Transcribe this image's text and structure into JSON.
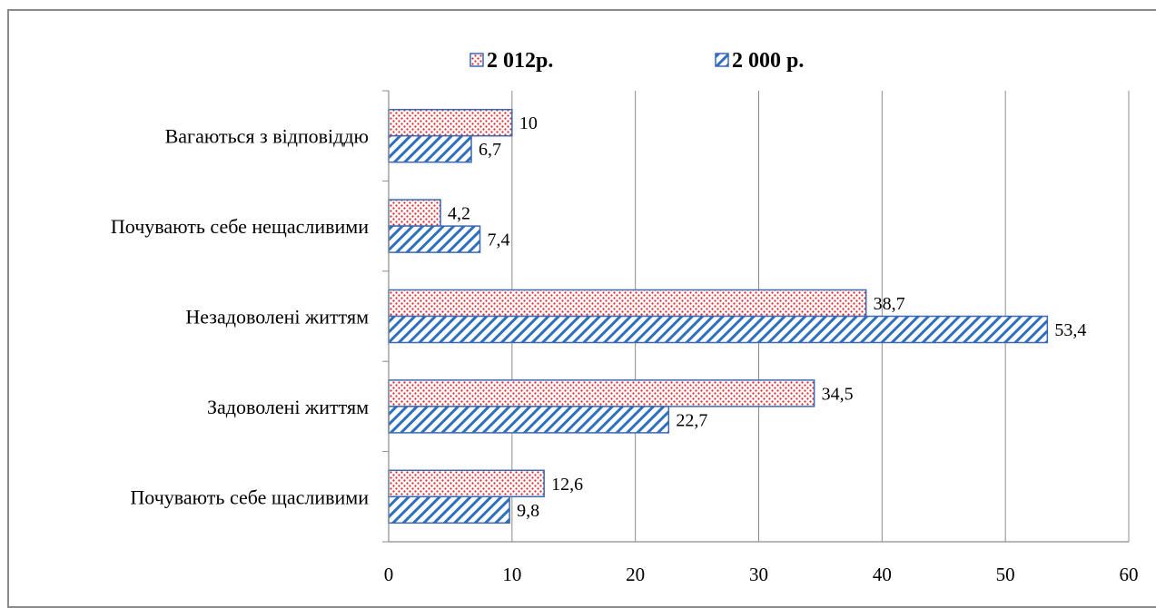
{
  "chart_data": {
    "type": "bar",
    "orientation": "horizontal",
    "categories": [
      "Почувають себе щасливими",
      "Задоволені життям",
      "Незадоволені життям",
      "Почувають себе нещасливими",
      "Вагаються з відповіддю"
    ],
    "series": [
      {
        "name": "2 012р.",
        "values": [
          12.6,
          34.5,
          38.7,
          4.2,
          10
        ],
        "labels": [
          "12,6",
          "34,5",
          "38,7",
          "4,2",
          "10"
        ]
      },
      {
        "name": "2 000 р.",
        "values": [
          9.8,
          22.7,
          53.4,
          7.4,
          6.7
        ],
        "labels": [
          "9,8",
          "22,7",
          "53,4",
          "7,4",
          "6,7"
        ]
      }
    ],
    "xlim": [
      0,
      60
    ],
    "xticks": [
      "0",
      "10",
      "20",
      "30",
      "40",
      "50",
      "60"
    ],
    "grid": "vertical",
    "legend": "top"
  },
  "colors": {
    "series_2012_fill": "#e81e25",
    "series_2000_fill": "#2e6fc0",
    "bar_outline": "#3c68b0",
    "grid": "#8c8c8c"
  }
}
